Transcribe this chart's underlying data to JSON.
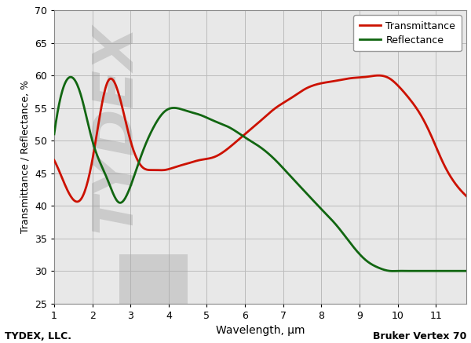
{
  "xlabel": "Wavelength, μm",
  "ylabel": "Transmittance / Reflectance, %",
  "xlim": [
    1.0,
    11.8
  ],
  "ylim": [
    25,
    70
  ],
  "xticks": [
    1,
    2,
    3,
    4,
    5,
    6,
    7,
    8,
    9,
    10,
    11
  ],
  "yticks": [
    25,
    30,
    35,
    40,
    45,
    50,
    55,
    60,
    65,
    70
  ],
  "grid_color": "#bbbbbb",
  "bg_color": "#e8e8e8",
  "transmittance_color": "#cc1100",
  "reflectance_color": "#116611",
  "legend_entries": [
    "Transmittance",
    "Reflectance"
  ],
  "footer_left": "TYDEX, LLC.",
  "footer_right": "Bruker Vertex 70",
  "transmittance_x": [
    1.0,
    1.3,
    1.7,
    2.0,
    2.4,
    2.7,
    3.0,
    3.3,
    3.6,
    3.9,
    4.2,
    4.5,
    4.8,
    5.2,
    5.6,
    6.0,
    6.4,
    6.8,
    7.2,
    7.6,
    8.0,
    8.4,
    8.8,
    9.2,
    9.5,
    9.8,
    10.0,
    10.3,
    10.6,
    10.9,
    11.2,
    11.5,
    11.8
  ],
  "transmittance_y": [
    47.0,
    43.0,
    41.0,
    47.0,
    59.0,
    57.0,
    50.0,
    46.0,
    45.5,
    45.5,
    46.0,
    46.5,
    47.0,
    47.5,
    49.0,
    51.0,
    53.0,
    55.0,
    56.5,
    58.0,
    58.8,
    59.2,
    59.6,
    59.8,
    60.0,
    59.5,
    58.5,
    56.5,
    54.0,
    50.5,
    46.5,
    43.5,
    41.5
  ],
  "reflectance_x": [
    1.0,
    1.3,
    1.7,
    2.0,
    2.4,
    2.7,
    3.0,
    3.3,
    3.6,
    3.9,
    4.2,
    4.5,
    4.8,
    5.2,
    5.6,
    6.0,
    6.4,
    6.8,
    7.2,
    7.6,
    8.0,
    8.4,
    8.8,
    9.2,
    9.5,
    9.8,
    10.0,
    10.3,
    10.6,
    10.9,
    11.2,
    11.5,
    11.8
  ],
  "reflectance_y": [
    51.0,
    59.0,
    57.0,
    50.0,
    44.0,
    40.5,
    43.0,
    48.0,
    52.0,
    54.5,
    55.0,
    54.5,
    54.0,
    53.0,
    52.0,
    50.5,
    49.0,
    47.0,
    44.5,
    42.0,
    39.5,
    37.0,
    34.0,
    31.5,
    30.5,
    30.0,
    30.0,
    30.0,
    30.0,
    30.0,
    30.0,
    30.0,
    30.0
  ],
  "tydex_text": "TYDEX",
  "tydex_x": 2.8,
  "tydex_y": 53,
  "tydex_fontsize": 52,
  "tydex_rotation": 90,
  "tydex_alpha": 0.28
}
